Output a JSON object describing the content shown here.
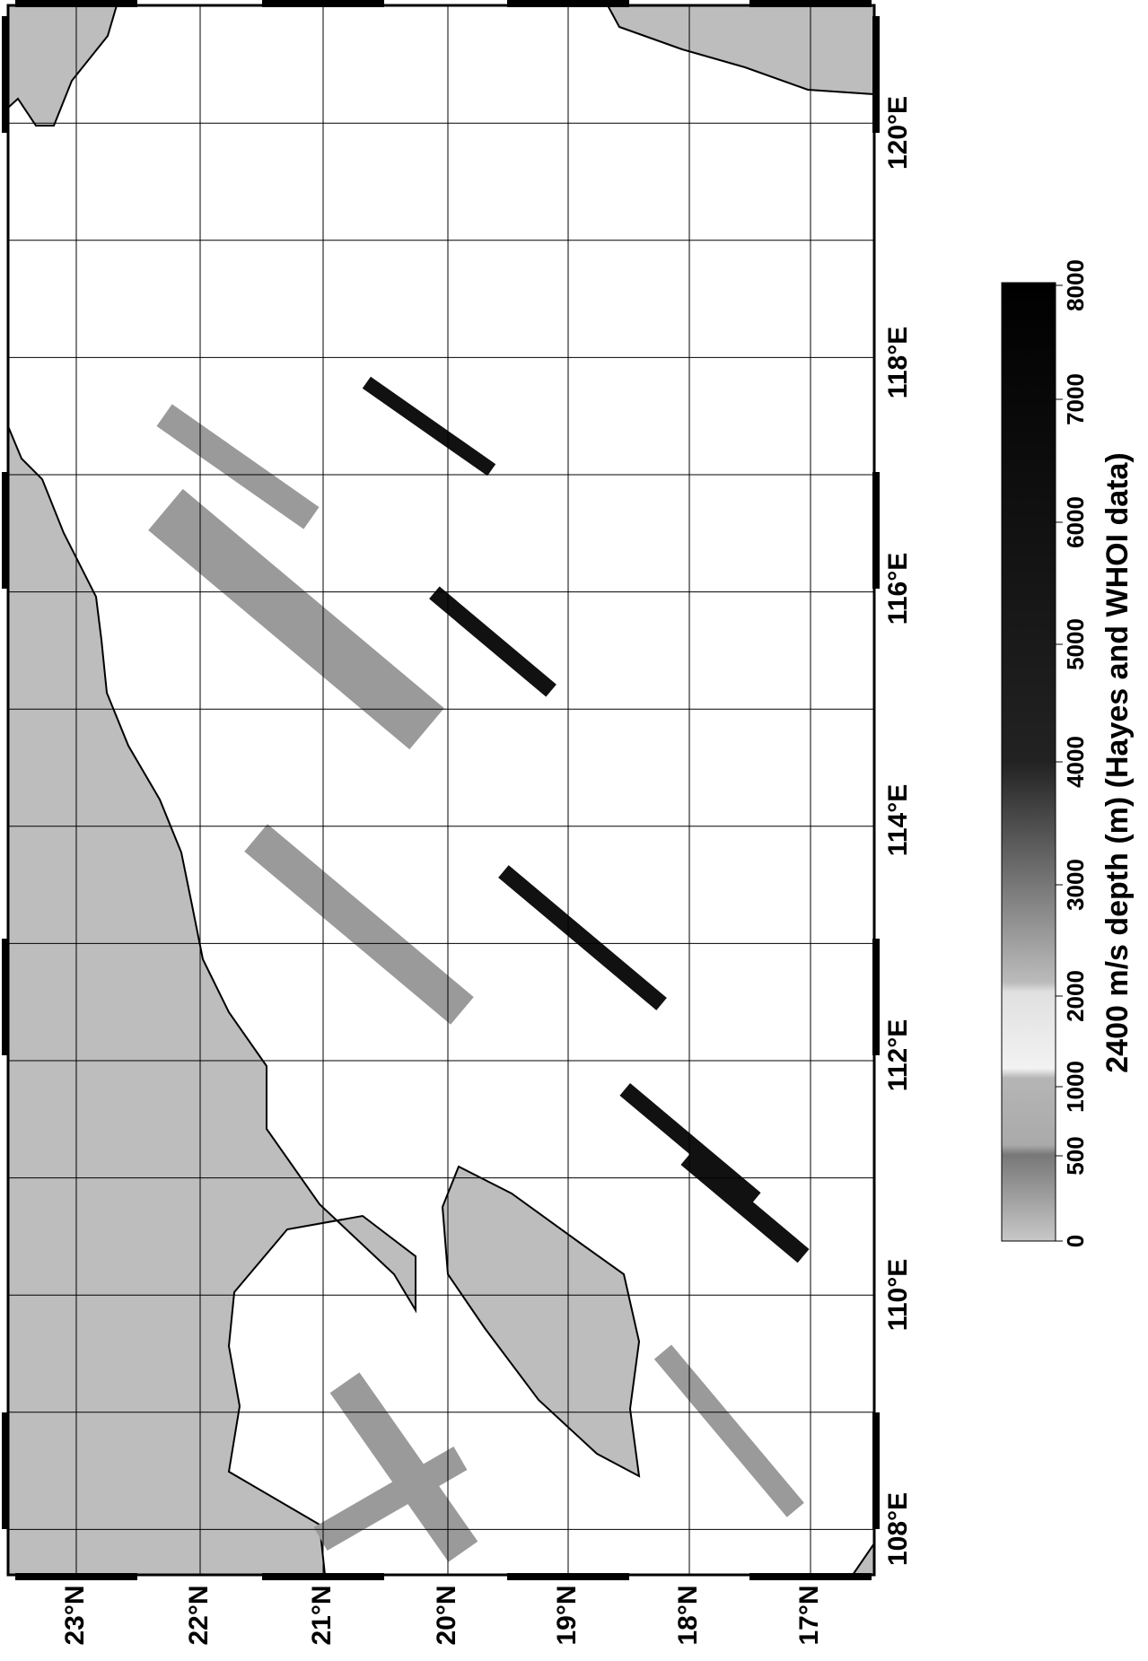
{
  "map": {
    "latitude_labels": [
      "23°N",
      "22°N",
      "21°N",
      "20°N",
      "19°N",
      "18°N",
      "17°N"
    ],
    "longitude_labels": [
      "108°E",
      "110°E",
      "112°E",
      "114°E",
      "116°E",
      "118°E",
      "120°E"
    ],
    "colorbar": {
      "title": "2400 m/s depth (m) (Hayes and WHOI data)",
      "tick_labels": [
        "0",
        "500",
        "1000",
        "2000",
        "3000",
        "4000",
        "5000",
        "6000",
        "7000",
        "8000"
      ]
    }
  }
}
